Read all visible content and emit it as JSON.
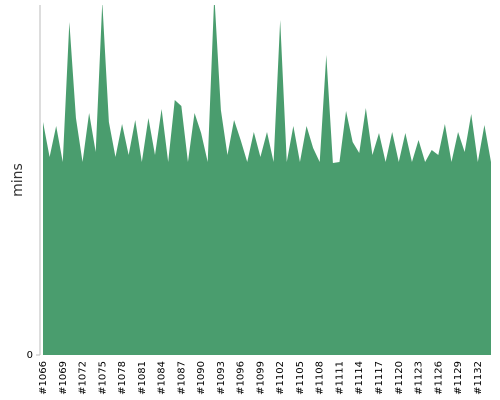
{
  "chart_data": {
    "type": "area",
    "y_label": "mins",
    "color": "#4a9d6e",
    "categories": [
      "#1066",
      null,
      null,
      "#1069",
      null,
      null,
      "#1072",
      null,
      null,
      "#1075",
      null,
      null,
      "#1078",
      null,
      null,
      "#1081",
      null,
      null,
      "#1084",
      null,
      null,
      "#1087",
      null,
      null,
      "#1090",
      null,
      null,
      "#1093",
      null,
      null,
      "#1096",
      null,
      null,
      "#1099",
      null,
      null,
      "#1102",
      null,
      null,
      "#1105",
      null,
      null,
      "#1108",
      null,
      null,
      "#1111",
      null,
      null,
      "#1114",
      null,
      null,
      "#1117",
      null,
      null,
      "#1120",
      null,
      null,
      "#1123",
      null,
      null,
      "#1126",
      null,
      null,
      "#1129",
      null,
      null,
      "#1132",
      null,
      null
    ],
    "values": [
      23.3,
      19.8,
      22.9,
      19.3,
      33.3,
      23.7,
      19.3,
      24.2,
      20.3,
      35.3,
      23.3,
      19.8,
      23.1,
      20,
      23.5,
      19.3,
      23.7,
      20,
      24.6,
      19.3,
      25.5,
      24.9,
      19.3,
      24.2,
      22.2,
      19.3,
      36,
      24.5,
      20,
      23.5,
      21.5,
      19.3,
      22.3,
      19.8,
      22.3,
      19.3,
      33.5,
      19.3,
      22.9,
      19.3,
      22.9,
      20.7,
      19.3,
      30,
      19.2,
      19.3,
      24.4,
      21.3,
      20.2,
      24.7,
      20,
      22.2,
      19.3,
      22.3,
      19.3,
      22.2,
      19.3,
      21.5,
      19.3,
      20.5,
      20,
      23.1,
      19.3,
      22.3,
      20.3,
      24.1,
      19.3,
      23,
      19.3
    ],
    "ylim": [
      0,
      35
    ],
    "yticks": [
      0
    ]
  }
}
